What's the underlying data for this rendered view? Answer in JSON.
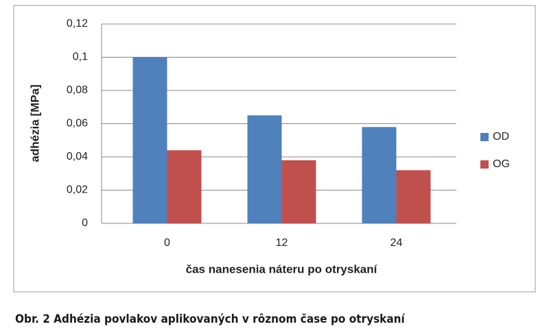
{
  "chart_data": {
    "type": "bar",
    "categories": [
      "0",
      "12",
      "24"
    ],
    "series": [
      {
        "name": "OD",
        "color": "#4f81bd",
        "values": [
          0.1,
          0.065,
          0.058
        ]
      },
      {
        "name": "OG",
        "color": "#c0504d",
        "values": [
          0.044,
          0.038,
          0.032
        ]
      }
    ],
    "ylabel": "adhézia [MPa]",
    "xlabel": "čas nanesenia náteru po otryskaní",
    "ylim": [
      0,
      0.12
    ],
    "yticks": [
      0,
      {
        "value": 0.02,
        "label": "0,02"
      },
      {
        "value": 0.04,
        "label": "0,04"
      },
      {
        "value": 0.06,
        "label": "0,06"
      },
      {
        "value": 0.08,
        "label": "0,08"
      },
      {
        "value": 0.1,
        "label": "0,1"
      },
      {
        "value": 0.12,
        "label": "0,12"
      }
    ],
    "grid": true,
    "legend": "right"
  },
  "caption": "Obr. 2 Adhézia povlakov aplikovaných v rôznom čase po otryskaní"
}
